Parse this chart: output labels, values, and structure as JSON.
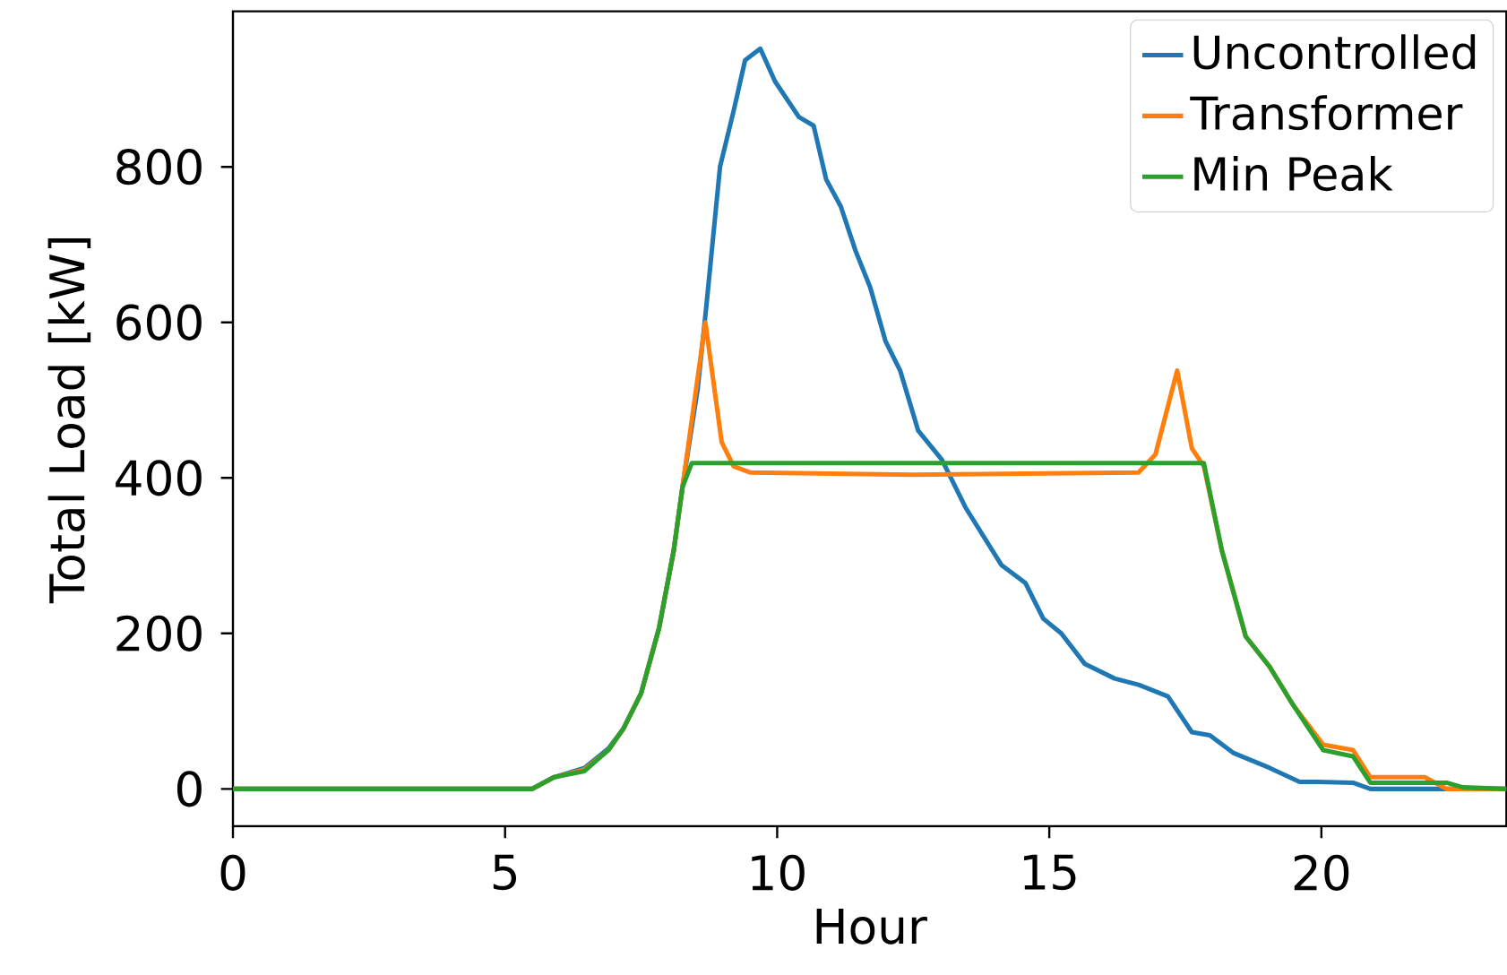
{
  "chart_data": {
    "type": "line",
    "xlabel": "Hour",
    "ylabel": "Total Load [kW]",
    "xlim": [
      0,
      23.4
    ],
    "ylim": [
      -48,
      1000
    ],
    "xticks": [
      0,
      5,
      10,
      15,
      20
    ],
    "yticks": [
      0,
      200,
      400,
      600,
      800
    ],
    "legend": "top right",
    "grid": false,
    "marker": "none",
    "line_style": "solid",
    "series": [
      {
        "name": "Uncontrolled",
        "color": "#1f77b4",
        "x": [
          0,
          5.5,
          5.9,
          6.46,
          6.9,
          7.17,
          7.5,
          7.83,
          8.1,
          8.26,
          8.54,
          8.7,
          8.95,
          9.2,
          9.41,
          9.69,
          9.96,
          10.4,
          10.67,
          10.9,
          11.17,
          11.44,
          11.71,
          11.99,
          12.26,
          12.59,
          13.03,
          13.46,
          14.12,
          14.56,
          14.89,
          15.22,
          15.65,
          16.2,
          16.64,
          17.18,
          17.62,
          17.95,
          18.39,
          19.05,
          19.6,
          19.93,
          20.58,
          20.9,
          23.4
        ],
        "values": [
          0,
          0,
          15,
          27,
          52,
          77,
          123,
          207,
          307,
          388,
          515,
          622,
          800,
          872,
          937,
          952,
          910,
          864,
          853,
          784,
          749,
          692,
          645,
          576,
          538,
          461,
          423,
          362,
          288,
          265,
          219,
          200,
          161,
          142,
          134,
          119,
          73,
          69,
          46,
          27,
          9,
          9,
          8,
          0,
          0
        ]
      },
      {
        "name": "Transformer",
        "color": "#ff7f0e",
        "x": [
          0,
          5.5,
          5.9,
          6.46,
          6.9,
          7.17,
          7.5,
          7.83,
          8.1,
          8.26,
          8.68,
          8.98,
          9.2,
          9.5,
          12.5,
          16.64,
          16.95,
          17.35,
          17.62,
          17.84,
          18.17,
          18.61,
          19.05,
          19.48,
          20.03,
          20.58,
          20.9,
          21.9,
          22.3,
          23.4
        ],
        "values": [
          0,
          0,
          15,
          25,
          50,
          77,
          123,
          207,
          307,
          388,
          600,
          446,
          415,
          407,
          404,
          407,
          430,
          538,
          438,
          415,
          307,
          196,
          157,
          108,
          57,
          50,
          15,
          15,
          0,
          0
        ]
      },
      {
        "name": "Min Peak",
        "color": "#2ca02c",
        "x": [
          0,
          5.5,
          5.9,
          6.46,
          6.9,
          7.17,
          7.5,
          7.83,
          8.1,
          8.26,
          8.43,
          17.84,
          18.17,
          18.61,
          19.05,
          19.48,
          20.03,
          20.58,
          20.9,
          22.3,
          22.6,
          23.4
        ],
        "values": [
          0,
          0,
          15,
          23,
          50,
          77,
          123,
          207,
          307,
          388,
          419,
          419,
          307,
          196,
          157,
          108,
          50,
          42,
          8,
          8,
          2,
          0
        ]
      }
    ]
  }
}
